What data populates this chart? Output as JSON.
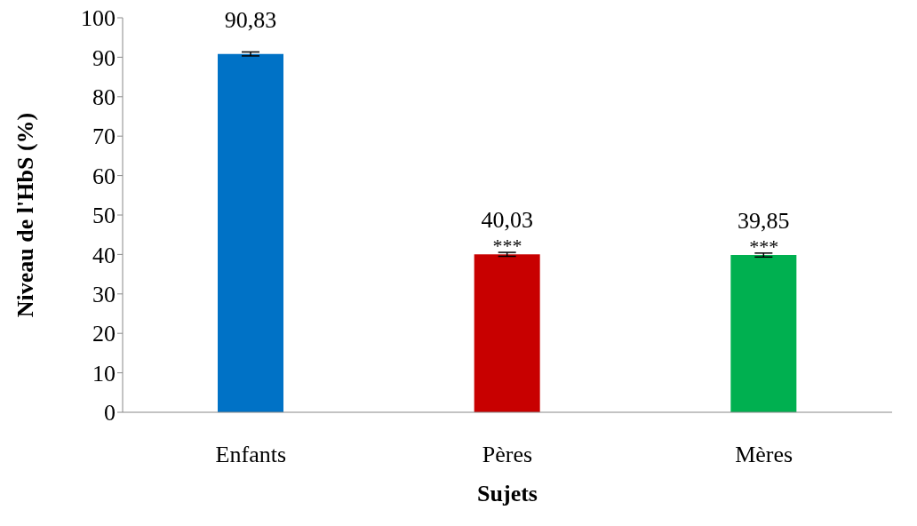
{
  "chart_data": {
    "type": "bar",
    "xlabel": "Sujets",
    "ylabel": "Niveau de l'HbS (%)",
    "categories": [
      "Enfants",
      "Pères",
      "Mères"
    ],
    "values": [
      90.83,
      40.03,
      39.85
    ],
    "errors": [
      0.5,
      0.5,
      0.5
    ],
    "value_labels": [
      "90,83",
      "40,03",
      "39,85"
    ],
    "colors": [
      "#0072c6",
      "#c80000",
      "#00b050"
    ],
    "annotations": [
      {
        "text": "***",
        "x": "Pères",
        "y": 40.03
      },
      {
        "text": "***",
        "x": "Mères",
        "y": 39.85
      }
    ],
    "ylim": [
      0,
      100
    ],
    "yticks": [
      0,
      10,
      20,
      30,
      40,
      50,
      60,
      70,
      80,
      90,
      100
    ],
    "grid": false,
    "legend": false
  }
}
